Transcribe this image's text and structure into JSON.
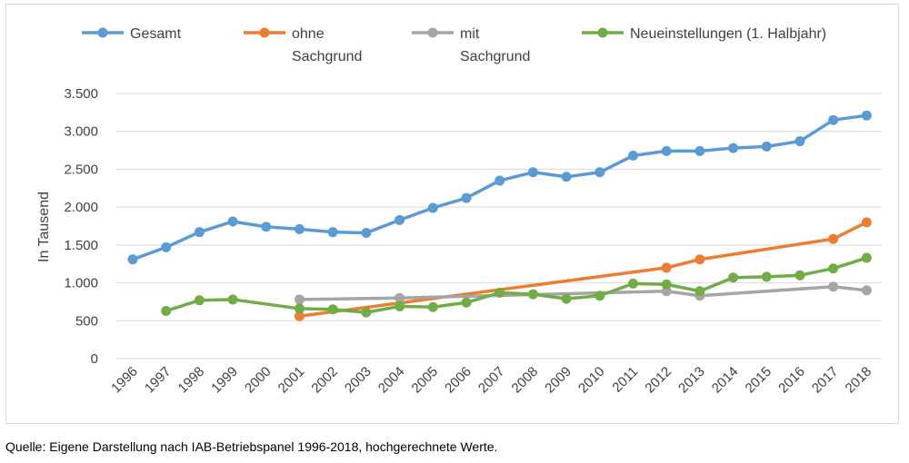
{
  "chart_data": {
    "type": "line",
    "title": "",
    "xlabel": "",
    "ylabel": "In Tausend",
    "ylim": [
      0,
      3500
    ],
    "yticks": [
      0,
      500,
      1000,
      1500,
      2000,
      2500,
      3000,
      3500
    ],
    "ytick_labels": [
      "0",
      "500",
      "1.000",
      "1.500",
      "2.000",
      "2.500",
      "3.000",
      "3.500"
    ],
    "grid": "horizontal",
    "legend_position": "top",
    "categories": [
      "1996",
      "1997",
      "1998",
      "1999",
      "2000",
      "2001",
      "2002",
      "2003",
      "2004",
      "2005",
      "2006",
      "2007",
      "2008",
      "2009",
      "2010",
      "2011",
      "2012",
      "2013",
      "2014",
      "2015",
      "2016",
      "2017",
      "2018"
    ],
    "series": [
      {
        "name": "Gesamt",
        "legend_lines": [
          "Gesamt"
        ],
        "color": "#5b9bd5",
        "values": [
          1310,
          1470,
          1670,
          1810,
          1740,
          1710,
          1670,
          1660,
          1830,
          1990,
          2120,
          2350,
          2460,
          2400,
          2460,
          2680,
          2740,
          2740,
          2780,
          2800,
          2870,
          3150,
          3210
        ]
      },
      {
        "name": "ohne Sachgrund",
        "legend_lines": [
          "ohne",
          "Sachgrund"
        ],
        "color": "#ed7d31",
        "values": [
          null,
          null,
          null,
          null,
          null,
          560,
          null,
          null,
          null,
          null,
          null,
          null,
          null,
          null,
          null,
          null,
          1200,
          1310,
          null,
          null,
          null,
          1580,
          1800
        ]
      },
      {
        "name": "mit Sachgrund",
        "legend_lines": [
          "mit",
          "Sachgrund"
        ],
        "color": "#a5a5a5",
        "values": [
          null,
          null,
          null,
          null,
          null,
          780,
          null,
          null,
          800,
          null,
          null,
          null,
          null,
          null,
          null,
          null,
          890,
          830,
          null,
          null,
          null,
          950,
          900
        ]
      },
      {
        "name": "Neueinstellungen (1. Halbjahr)",
        "legend_lines": [
          "Neueinstellungen (1. Halbjahr)"
        ],
        "color": "#70ad47",
        "values": [
          null,
          630,
          770,
          780,
          null,
          660,
          650,
          610,
          690,
          680,
          740,
          870,
          850,
          790,
          830,
          990,
          980,
          890,
          1070,
          1080,
          1100,
          1190,
          1330
        ]
      }
    ]
  },
  "source_note": "Quelle: Eigene Darstellung nach IAB-Betriebspanel 1996-2018, hochgerechnete Werte."
}
